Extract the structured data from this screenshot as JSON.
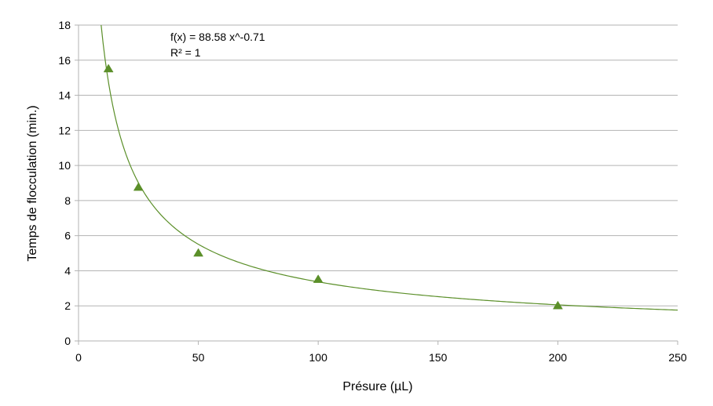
{
  "chart_data": {
    "type": "scatter",
    "xlabel": "Présure (µL)",
    "ylabel": "Temps de flocculation (min.)",
    "xlim": [
      0,
      250
    ],
    "ylim": [
      0,
      18
    ],
    "x_ticks": [
      0,
      50,
      100,
      150,
      200,
      250
    ],
    "y_ticks": [
      0,
      2,
      4,
      6,
      8,
      10,
      12,
      14,
      16,
      18
    ],
    "grid": "horizontal",
    "series": [
      {
        "points": [
          {
            "x": 12.5,
            "y": 15.5
          },
          {
            "x": 25,
            "y": 8.75
          },
          {
            "x": 50,
            "y": 5
          },
          {
            "x": 100,
            "y": 3.5
          },
          {
            "x": 200,
            "y": 2
          }
        ],
        "marker": "triangle",
        "color": "#5b8f29"
      }
    ],
    "trendline": {
      "kind": "power",
      "a": 88.58,
      "b": -0.71,
      "color": "#5b8f29"
    },
    "annotations": [
      "f(x) = 88.58 x^-0.71",
      "R² = 1"
    ],
    "gridline_color": "#b3b3b3",
    "axis_color": "#b3b3b3"
  }
}
